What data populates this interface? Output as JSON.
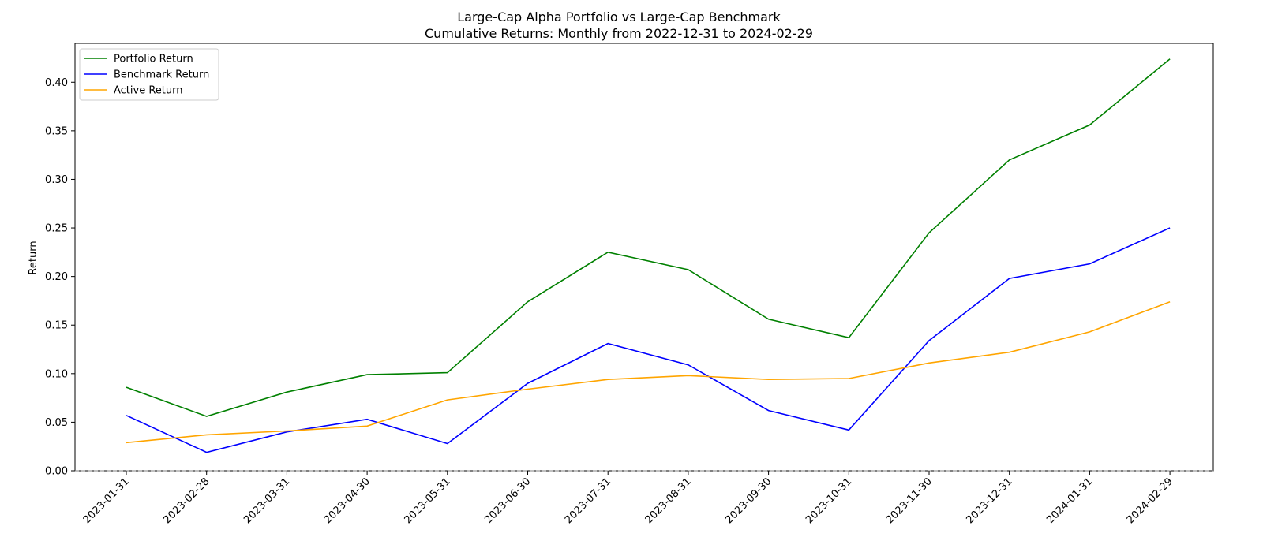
{
  "chart_data": {
    "type": "line",
    "title": "Large-Cap Alpha Portfolio vs Large-Cap Benchmark",
    "subtitle": "Cumulative Returns: Monthly from 2022-12-31 to 2024-02-29",
    "xlabel": "",
    "ylabel": "Return",
    "x": [
      "2023-01-31",
      "2023-02-28",
      "2023-03-31",
      "2023-04-30",
      "2023-05-31",
      "2023-06-30",
      "2023-07-31",
      "2023-08-31",
      "2023-09-30",
      "2023-10-31",
      "2023-11-30",
      "2023-12-31",
      "2024-01-31",
      "2024-02-29"
    ],
    "ylim": [
      0.0,
      0.44
    ],
    "yticks": [
      "0.00",
      "0.05",
      "0.10",
      "0.15",
      "0.20",
      "0.25",
      "0.30",
      "0.35",
      "0.40"
    ],
    "grid": false,
    "legend_position": "upper-left",
    "zero_line": {
      "value": 0.0,
      "style": "dashed",
      "color": "#808080"
    },
    "series": [
      {
        "name": "Portfolio Return",
        "color": "#008000",
        "values": [
          0.086,
          0.056,
          0.081,
          0.099,
          0.101,
          0.174,
          0.225,
          0.207,
          0.156,
          0.137,
          0.245,
          0.32,
          0.356,
          0.424
        ]
      },
      {
        "name": "Benchmark Return",
        "color": "#0000ff",
        "values": [
          0.057,
          0.019,
          0.04,
          0.053,
          0.028,
          0.09,
          0.131,
          0.109,
          0.062,
          0.042,
          0.134,
          0.198,
          0.213,
          0.25
        ]
      },
      {
        "name": "Active Return",
        "color": "#ffa500",
        "values": [
          0.029,
          0.037,
          0.041,
          0.046,
          0.073,
          0.084,
          0.094,
          0.098,
          0.094,
          0.095,
          0.111,
          0.122,
          0.143,
          0.174
        ]
      }
    ]
  }
}
